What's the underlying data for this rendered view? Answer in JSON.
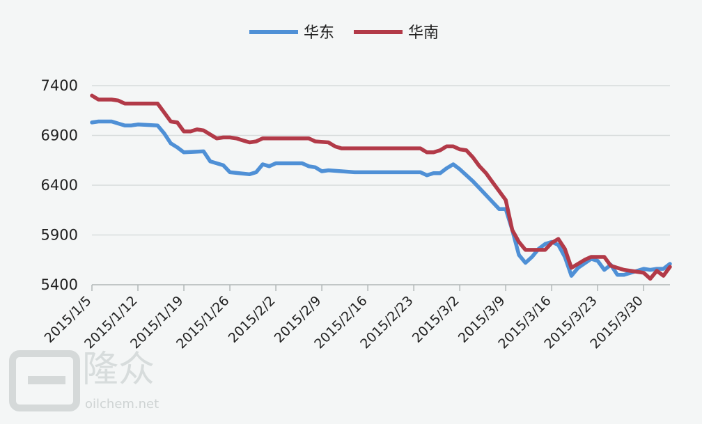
{
  "chart_data": {
    "type": "line",
    "title": "",
    "xlabel": "",
    "ylabel": "",
    "ylim": [
      5400,
      7400
    ],
    "yticks": [
      5400,
      5900,
      6400,
      6900,
      7400
    ],
    "x_tick_labels": [
      "2015/1/5",
      "2015/1/12",
      "2015/1/19",
      "2015/1/26",
      "2015/2/2",
      "2015/2/9",
      "2015/2/16",
      "2015/2/23",
      "2015/3/2",
      "2015/3/9",
      "2015/3/16",
      "2015/3/23",
      "2015/3/30"
    ],
    "grid": true,
    "legend_position": "top-center",
    "colors": {
      "华东": "#4f90d6",
      "华南": "#b23a48"
    },
    "series": [
      {
        "name": "华东",
        "points": [
          [
            0,
            7030
          ],
          [
            1,
            7040
          ],
          [
            3,
            7040
          ],
          [
            5,
            7000
          ],
          [
            6,
            7000
          ],
          [
            7,
            7010
          ],
          [
            10,
            7000
          ],
          [
            11,
            6920
          ],
          [
            12,
            6820
          ],
          [
            13,
            6780
          ],
          [
            14,
            6730
          ],
          [
            17,
            6740
          ],
          [
            18,
            6640
          ],
          [
            20,
            6600
          ],
          [
            21,
            6530
          ],
          [
            24,
            6510
          ],
          [
            25,
            6530
          ],
          [
            26,
            6610
          ],
          [
            27,
            6590
          ],
          [
            28,
            6620
          ],
          [
            32,
            6620
          ],
          [
            33,
            6590
          ],
          [
            34,
            6580
          ],
          [
            35,
            6540
          ],
          [
            36,
            6550
          ],
          [
            38,
            6540
          ],
          [
            40,
            6530
          ],
          [
            50,
            6530
          ],
          [
            51,
            6500
          ],
          [
            52,
            6520
          ],
          [
            53,
            6520
          ],
          [
            54,
            6570
          ],
          [
            55,
            6610
          ],
          [
            56,
            6560
          ],
          [
            57,
            6500
          ],
          [
            58,
            6440
          ],
          [
            59,
            6370
          ],
          [
            60,
            6300
          ],
          [
            61,
            6230
          ],
          [
            62,
            6160
          ],
          [
            63,
            6160
          ],
          [
            64,
            5950
          ],
          [
            65,
            5700
          ],
          [
            66,
            5620
          ],
          [
            67,
            5680
          ],
          [
            68,
            5760
          ],
          [
            69,
            5810
          ],
          [
            70,
            5830
          ],
          [
            71,
            5800
          ],
          [
            72,
            5680
          ],
          [
            73,
            5490
          ],
          [
            74,
            5570
          ],
          [
            76,
            5660
          ],
          [
            77,
            5640
          ],
          [
            78,
            5550
          ],
          [
            79,
            5600
          ],
          [
            80,
            5500
          ],
          [
            81,
            5500
          ],
          [
            84,
            5560
          ],
          [
            85,
            5550
          ],
          [
            86,
            5560
          ],
          [
            87,
            5560
          ],
          [
            88,
            5610
          ]
        ]
      },
      {
        "name": "华南",
        "points": [
          [
            0,
            7300
          ],
          [
            1,
            7260
          ],
          [
            3,
            7260
          ],
          [
            4,
            7250
          ],
          [
            5,
            7220
          ],
          [
            10,
            7220
          ],
          [
            11,
            7130
          ],
          [
            12,
            7040
          ],
          [
            13,
            7030
          ],
          [
            14,
            6940
          ],
          [
            15,
            6940
          ],
          [
            16,
            6960
          ],
          [
            17,
            6950
          ],
          [
            18,
            6910
          ],
          [
            19,
            6870
          ],
          [
            20,
            6880
          ],
          [
            21,
            6880
          ],
          [
            22,
            6870
          ],
          [
            23,
            6850
          ],
          [
            24,
            6830
          ],
          [
            25,
            6840
          ],
          [
            26,
            6870
          ],
          [
            27,
            6870
          ],
          [
            33,
            6870
          ],
          [
            34,
            6840
          ],
          [
            36,
            6830
          ],
          [
            37,
            6790
          ],
          [
            38,
            6770
          ],
          [
            50,
            6770
          ],
          [
            51,
            6730
          ],
          [
            52,
            6730
          ],
          [
            53,
            6750
          ],
          [
            54,
            6790
          ],
          [
            55,
            6790
          ],
          [
            56,
            6760
          ],
          [
            57,
            6750
          ],
          [
            58,
            6680
          ],
          [
            59,
            6590
          ],
          [
            60,
            6520
          ],
          [
            61,
            6430
          ],
          [
            62,
            6340
          ],
          [
            63,
            6250
          ],
          [
            64,
            5950
          ],
          [
            65,
            5830
          ],
          [
            66,
            5750
          ],
          [
            67,
            5750
          ],
          [
            69,
            5750
          ],
          [
            70,
            5820
          ],
          [
            71,
            5860
          ],
          [
            72,
            5760
          ],
          [
            73,
            5570
          ],
          [
            74,
            5610
          ],
          [
            75,
            5650
          ],
          [
            76,
            5680
          ],
          [
            77,
            5680
          ],
          [
            78,
            5680
          ],
          [
            79,
            5590
          ],
          [
            80,
            5570
          ],
          [
            81,
            5550
          ],
          [
            82,
            5540
          ],
          [
            83,
            5530
          ],
          [
            84,
            5520
          ],
          [
            85,
            5460
          ],
          [
            86,
            5540
          ],
          [
            87,
            5490
          ],
          [
            88,
            5580
          ]
        ]
      }
    ],
    "watermark": {
      "site": "oilchem.net",
      "chars": "隆众"
    }
  }
}
